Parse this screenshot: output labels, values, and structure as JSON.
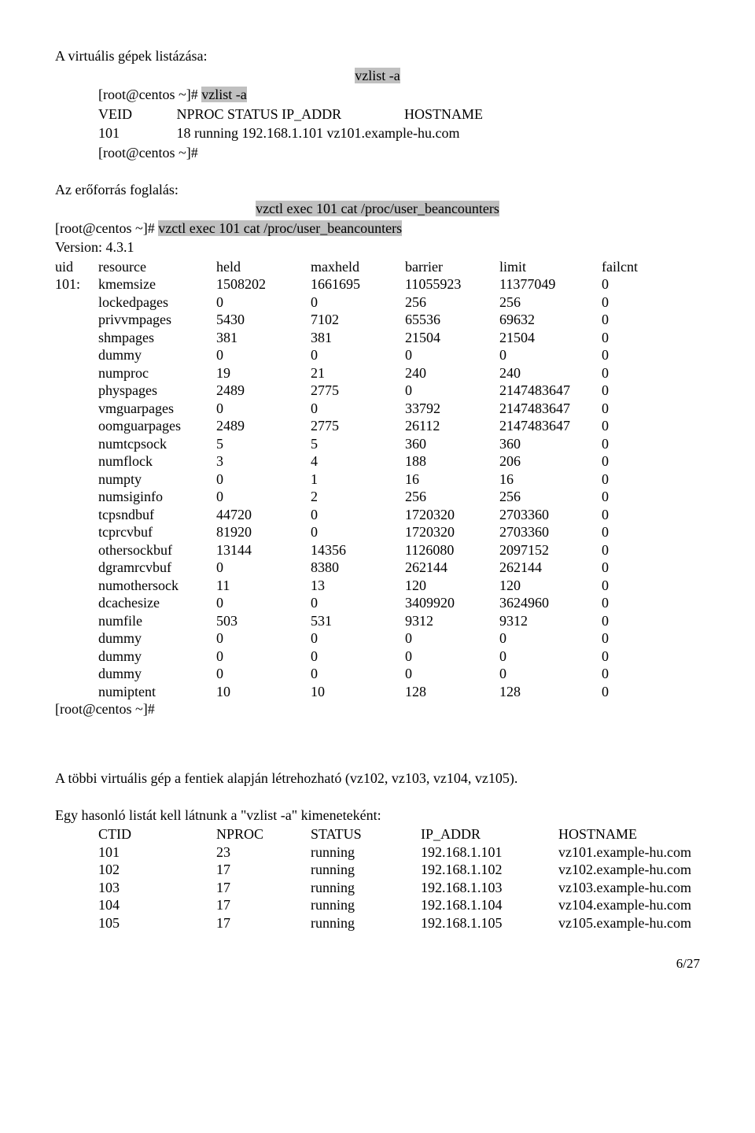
{
  "section1": {
    "title": "A virtuális gépek listázása:",
    "cmd": "vzlist -a",
    "prompt": "[root@centos ~]# ",
    "promptCmd": "vzlist -a",
    "header1": "VEID",
    "header2": "NPROC STATUS IP_ADDR",
    "header3": "HOSTNAME",
    "row_a": "101",
    "row_b": "18 running 192.168.1.101 vz101.example-hu.com",
    "endPrompt": "[root@centos ~]#"
  },
  "section2": {
    "title": "Az erőforrás foglalás:",
    "cmd": "vzctl exec 101 cat /proc/user_beancounters",
    "prompt": "[root@centos ~]# ",
    "promptCmd": "vzctl exec 101 cat /proc/user_beancounters",
    "version": "Version: 4.3.1",
    "h_uid": "uid",
    "h_res": "resource",
    "h_held": "held",
    "h_max": "maxheld",
    "h_bar": "barrier",
    "h_lim": "limit",
    "h_fail": "failcnt",
    "uid": "101:",
    "rows": [
      [
        "kmemsize",
        "1508202",
        "1661695",
        "11055923",
        "11377049",
        "0"
      ],
      [
        "lockedpages",
        "0",
        "0",
        "256",
        "256",
        "0"
      ],
      [
        "privvmpages",
        "5430",
        "7102",
        "65536",
        "69632",
        "0"
      ],
      [
        "shmpages",
        "381",
        "381",
        "21504",
        "21504",
        "0"
      ],
      [
        "dummy",
        "0",
        "0",
        "0",
        "0",
        "0"
      ],
      [
        "numproc",
        "19",
        "21",
        "240",
        "240",
        "0"
      ],
      [
        "physpages",
        "2489",
        "2775",
        "0",
        "2147483647",
        "0"
      ],
      [
        "vmguarpages",
        "0",
        "0",
        "33792",
        "2147483647",
        "0"
      ],
      [
        "oomguarpages",
        "2489",
        "2775",
        "26112",
        "2147483647",
        "0"
      ],
      [
        "numtcpsock",
        "5",
        "5",
        "360",
        "360",
        "0"
      ],
      [
        "numflock",
        "3",
        "4",
        "188",
        "206",
        "0"
      ],
      [
        "numpty",
        "0",
        "1",
        "16",
        "16",
        "0"
      ],
      [
        "numsiginfo",
        "0",
        "2",
        "256",
        "256",
        "0"
      ],
      [
        "tcpsndbuf",
        "44720",
        "0",
        "1720320",
        "2703360",
        "0"
      ],
      [
        "tcprcvbuf",
        "81920",
        "0",
        "1720320",
        "2703360",
        "0"
      ],
      [
        "othersockbuf",
        "13144",
        "14356",
        "1126080",
        "2097152",
        "0"
      ],
      [
        "dgramrcvbuf",
        "0",
        "8380",
        "262144",
        "262144",
        "0"
      ],
      [
        "numothersock",
        "11",
        "13",
        "120",
        "120",
        "0"
      ],
      [
        "dcachesize",
        "0",
        "0",
        "3409920",
        "3624960",
        "0"
      ],
      [
        "numfile",
        "503",
        "531",
        "9312",
        "9312",
        "0"
      ],
      [
        "dummy",
        "0",
        "0",
        "0",
        "0",
        "0"
      ],
      [
        "dummy",
        "0",
        "0",
        "0",
        "0",
        "0"
      ],
      [
        "dummy",
        "0",
        "0",
        "0",
        "0",
        "0"
      ],
      [
        "numiptent",
        "10",
        "10",
        "128",
        "128",
        "0"
      ]
    ],
    "endPrompt": "[root@centos ~]#"
  },
  "section3": {
    "para1": "A többi virtuális gép a fentiek alapján létrehozható (vz102, vz103, vz104, vz105).",
    "para2": "Egy hasonló listát kell látnunk a \"vzlist -a\" kimeneteként:",
    "h1": "CTID",
    "h2": "NPROC",
    "h3": "STATUS",
    "h4": "IP_ADDR",
    "h5": "HOSTNAME",
    "rows": [
      [
        "101",
        "23",
        "running",
        "192.168.1.101",
        "vz101.example-hu.com"
      ],
      [
        "102",
        "17",
        "running",
        "192.168.1.102",
        "vz102.example-hu.com"
      ],
      [
        "103",
        "17",
        "running",
        "192.168.1.103",
        "vz103.example-hu.com"
      ],
      [
        "104",
        "17",
        "running",
        "192.168.1.104",
        "vz104.example-hu.com"
      ],
      [
        "105",
        "17",
        "running",
        "192.168.1.105",
        "vz105.example-hu.com"
      ]
    ]
  },
  "pageNum": "6/27"
}
